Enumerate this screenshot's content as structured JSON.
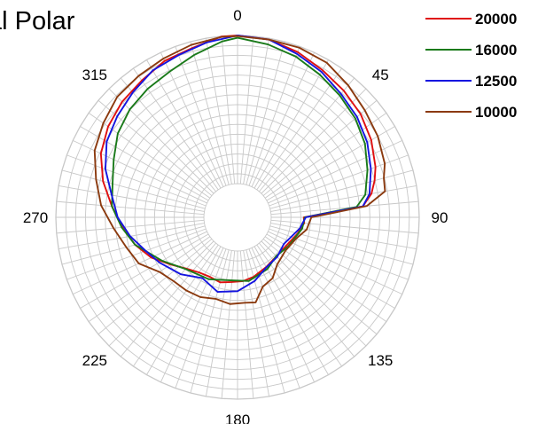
{
  "chart_data": {
    "type": "line",
    "polar": true,
    "title": "tal Polar",
    "angle_ticks": [
      "0",
      "45",
      "90",
      "135",
      "180",
      "225",
      "270",
      "315"
    ],
    "angle_unit": "degrees",
    "rlim": [
      -45,
      0
    ],
    "radial_grid_step": 3,
    "angular_grid_step": 5,
    "grid": true,
    "legend_position": "top-right",
    "series": [
      {
        "name": "20000",
        "color": "#e01010",
        "points": [
          [
            0,
            0
          ],
          [
            10,
            -0.4
          ],
          [
            20,
            -1.8
          ],
          [
            30,
            -3.6
          ],
          [
            40,
            -5.0
          ],
          [
            50,
            -6.4
          ],
          [
            60,
            -8.3
          ],
          [
            70,
            -10.6
          ],
          [
            75,
            -12.1
          ],
          [
            80,
            -13.9
          ],
          [
            85,
            -17.0
          ],
          [
            90,
            -35.1
          ],
          [
            95,
            -34.9
          ],
          [
            105,
            -36.3
          ],
          [
            120,
            -38.1
          ],
          [
            135,
            -38.5
          ],
          [
            150,
            -37.8
          ],
          [
            165,
            -36.5
          ],
          [
            175,
            -35.8
          ],
          [
            185,
            -35.5
          ],
          [
            195,
            -34.8
          ],
          [
            205,
            -35.3
          ],
          [
            215,
            -34.8
          ],
          [
            225,
            -33.2
          ],
          [
            235,
            -30.3
          ],
          [
            245,
            -26.3
          ],
          [
            255,
            -23.0
          ],
          [
            265,
            -20.1
          ],
          [
            275,
            -16.9
          ],
          [
            285,
            -12.9
          ],
          [
            295,
            -9.4
          ],
          [
            305,
            -7.2
          ],
          [
            315,
            -5.6
          ],
          [
            325,
            -4.5
          ],
          [
            335,
            -2.8
          ],
          [
            345,
            -2.0
          ],
          [
            355,
            -0.1
          ],
          [
            360,
            0
          ]
        ]
      },
      {
        "name": "16000",
        "color": "#1a7a1a",
        "points": [
          [
            0,
            -0.7
          ],
          [
            10,
            -1.9
          ],
          [
            20,
            -3.3
          ],
          [
            30,
            -5.2
          ],
          [
            40,
            -6.9
          ],
          [
            50,
            -8.5
          ],
          [
            60,
            -10.5
          ],
          [
            70,
            -13.2
          ],
          [
            80,
            -15.8
          ],
          [
            85,
            -18.9
          ],
          [
            90,
            -34.8
          ],
          [
            100,
            -35.3
          ],
          [
            120,
            -37.5
          ],
          [
            135,
            -38.6
          ],
          [
            150,
            -37.1
          ],
          [
            170,
            -35.6
          ],
          [
            185,
            -36.0
          ],
          [
            205,
            -34.5
          ],
          [
            225,
            -33.0
          ],
          [
            240,
            -28.8
          ],
          [
            255,
            -23.0
          ],
          [
            265,
            -19.9
          ],
          [
            275,
            -16.9
          ],
          [
            285,
            -15.9
          ],
          [
            295,
            -13.7
          ],
          [
            305,
            -10.8
          ],
          [
            315,
            -8.9
          ],
          [
            325,
            -7.6
          ],
          [
            335,
            -6.4
          ],
          [
            345,
            -4.2
          ],
          [
            355,
            -1.6
          ],
          [
            360,
            -0.7
          ]
        ]
      },
      {
        "name": "12500",
        "color": "#1515e0",
        "points": [
          [
            0,
            0
          ],
          [
            10,
            -0.4
          ],
          [
            20,
            -2.4
          ],
          [
            30,
            -4.2
          ],
          [
            40,
            -6.3
          ],
          [
            50,
            -7.8
          ],
          [
            60,
            -9.7
          ],
          [
            70,
            -12.1
          ],
          [
            80,
            -14.5
          ],
          [
            85,
            -17.0
          ],
          [
            90,
            -34.5
          ],
          [
            100,
            -36.0
          ],
          [
            120,
            -39.0
          ],
          [
            135,
            -38.2
          ],
          [
            150,
            -37.7
          ],
          [
            165,
            -35.2
          ],
          [
            180,
            -32.8
          ],
          [
            195,
            -31.8
          ],
          [
            210,
            -33.9
          ],
          [
            225,
            -30.8
          ],
          [
            240,
            -27.8
          ],
          [
            250,
            -25.5
          ],
          [
            260,
            -22.1
          ],
          [
            270,
            -18.8
          ],
          [
            280,
            -16.4
          ],
          [
            290,
            -12.5
          ],
          [
            300,
            -9.3
          ],
          [
            310,
            -7.5
          ],
          [
            320,
            -5.7
          ],
          [
            330,
            -3.7
          ],
          [
            340,
            -2.8
          ],
          [
            350,
            -1.3
          ],
          [
            360,
            0
          ]
        ]
      },
      {
        "name": "10000",
        "color": "#8b3a0f",
        "points": [
          [
            0,
            -0.2
          ],
          [
            10,
            -0.4
          ],
          [
            20,
            -0.4
          ],
          [
            30,
            -1.0
          ],
          [
            40,
            -2.9
          ],
          [
            50,
            -4.7
          ],
          [
            60,
            -6.0
          ],
          [
            70,
            -7.6
          ],
          [
            75,
            -9.2
          ],
          [
            80,
            -9.7
          ],
          [
            85,
            -15.8
          ],
          [
            90,
            -32.8
          ],
          [
            100,
            -33.9
          ],
          [
            110,
            -36.3
          ],
          [
            125,
            -37.5
          ],
          [
            140,
            -36.5
          ],
          [
            150,
            -33.9
          ],
          [
            160,
            -32.8
          ],
          [
            168,
            -28.8
          ],
          [
            175,
            -29.2
          ],
          [
            185,
            -28.8
          ],
          [
            195,
            -29.6
          ],
          [
            205,
            -28.5
          ],
          [
            215,
            -28.1
          ],
          [
            225,
            -27.8
          ],
          [
            235,
            -26.3
          ],
          [
            245,
            -22.1
          ],
          [
            255,
            -20.2
          ],
          [
            265,
            -17.4
          ],
          [
            275,
            -13.6
          ],
          [
            285,
            -10.7
          ],
          [
            295,
            -7.3
          ],
          [
            305,
            -5.4
          ],
          [
            315,
            -3.5
          ],
          [
            325,
            -2.8
          ],
          [
            335,
            -2.0
          ],
          [
            345,
            -1.0
          ],
          [
            355,
            -0.2
          ],
          [
            360,
            -0.2
          ]
        ]
      }
    ]
  }
}
